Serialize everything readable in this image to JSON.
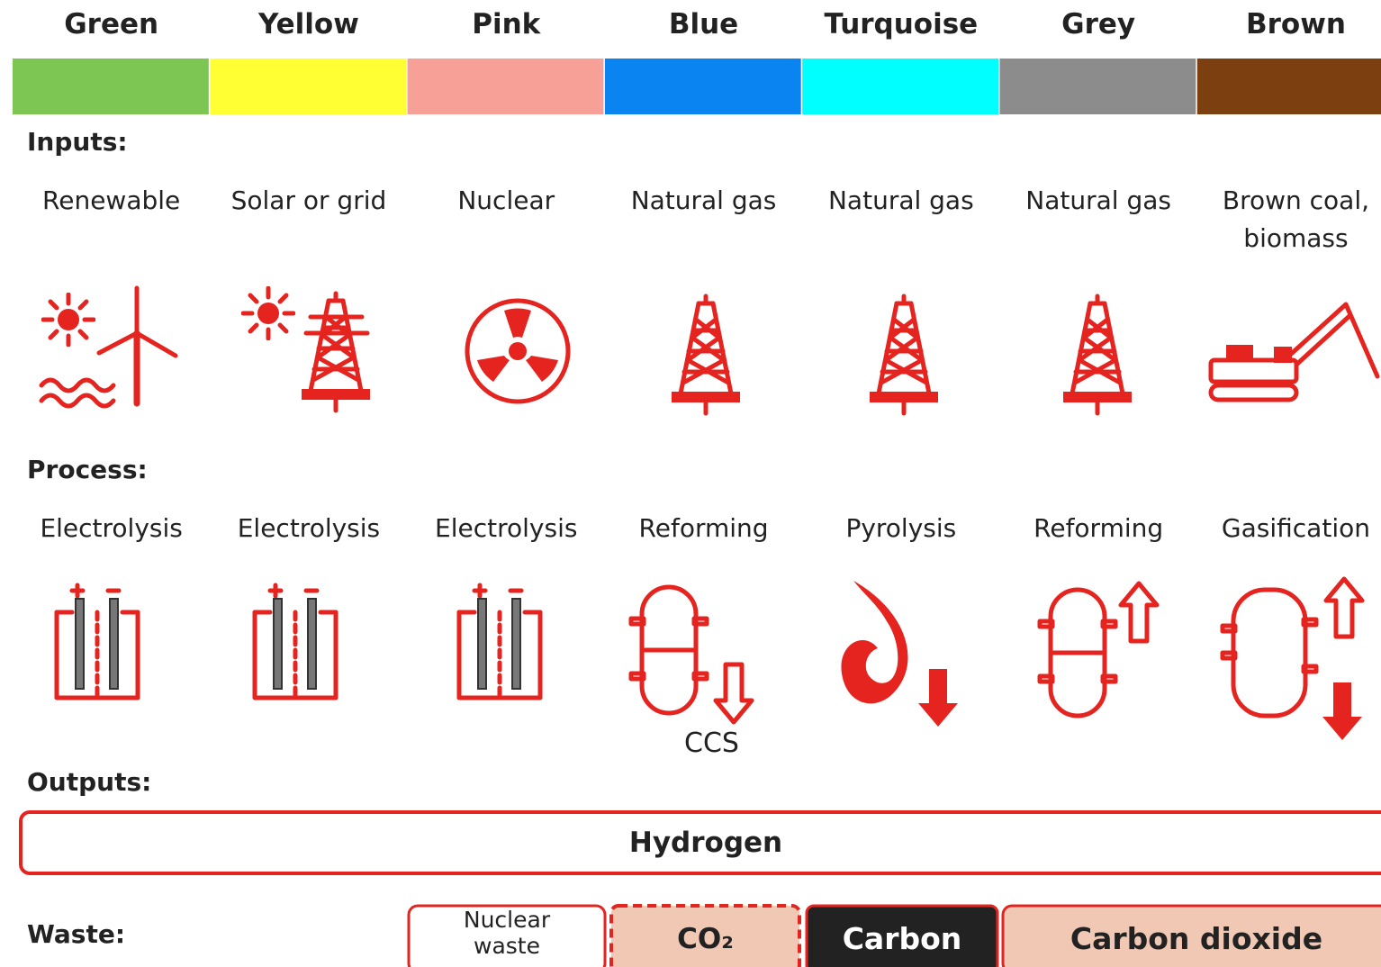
{
  "columns": [
    {
      "name": "Green",
      "color": "#7dc653",
      "input": "Renewable",
      "process": "Electrolysis"
    },
    {
      "name": "Yellow",
      "color": "#ffff33",
      "input": "Solar or grid",
      "process": "Electrolysis"
    },
    {
      "name": "Pink",
      "color": "#f6a097",
      "input": "Nuclear",
      "process": "Electrolysis"
    },
    {
      "name": "Blue",
      "color": "#0a84f0",
      "input": "Natural gas",
      "process": "Reforming"
    },
    {
      "name": "Turquoise",
      "color": "#00ffff",
      "input": "Natural gas",
      "process": "Pyrolysis"
    },
    {
      "name": "Grey",
      "color": "#8c8c8c",
      "input": "Natural gas",
      "process": "Reforming"
    },
    {
      "name": "Brown",
      "color": "#7b3f10",
      "input": "Brown coal, biomass",
      "process": "Gasification"
    }
  ],
  "labels": {
    "inputs": "Inputs:",
    "process": "Process:",
    "outputs": "Outputs:",
    "waste": "Waste:"
  },
  "output": "Hydrogen",
  "ccs": "CCS",
  "waste": [
    "Nuclear waste",
    "CO₂",
    "Carbon",
    "Carbon dioxide"
  ]
}
